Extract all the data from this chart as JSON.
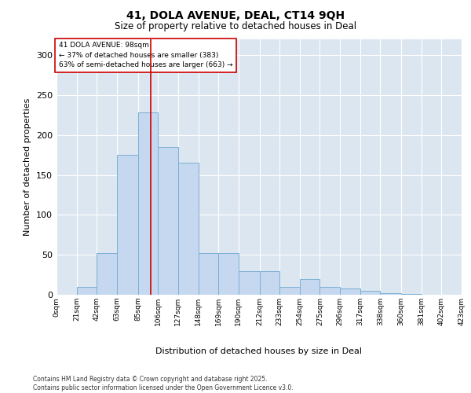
{
  "title_line1": "41, DOLA AVENUE, DEAL, CT14 9QH",
  "title_line2": "Size of property relative to detached houses in Deal",
  "xlabel": "Distribution of detached houses by size in Deal",
  "ylabel": "Number of detached properties",
  "footer_line1": "Contains HM Land Registry data © Crown copyright and database right 2025.",
  "footer_line2": "Contains public sector information licensed under the Open Government Licence v3.0.",
  "annotation_line1": "41 DOLA AVENUE: 98sqm",
  "annotation_line2": "← 37% of detached houses are smaller (383)",
  "annotation_line3": "63% of semi-detached houses are larger (663) →",
  "bar_color": "#c5d8f0",
  "bar_edge_color": "#7bafd4",
  "background_color": "#dce6f0",
  "vline_color": "#cc0000",
  "vline_x": 98,
  "bin_edges": [
    0,
    21,
    42,
    63,
    85,
    106,
    127,
    148,
    169,
    190,
    212,
    233,
    254,
    275,
    296,
    317,
    338,
    360,
    381,
    402,
    423
  ],
  "bar_heights": [
    0,
    10,
    52,
    175,
    228,
    185,
    165,
    52,
    52,
    30,
    30,
    10,
    20,
    10,
    8,
    5,
    2,
    1,
    0,
    0
  ],
  "ylim": [
    0,
    320
  ],
  "yticks": [
    0,
    50,
    100,
    150,
    200,
    250,
    300
  ],
  "tick_labels": [
    "0sqm",
    "21sqm",
    "42sqm",
    "63sqm",
    "85sqm",
    "106sqm",
    "127sqm",
    "148sqm",
    "169sqm",
    "190sqm",
    "212sqm",
    "233sqm",
    "254sqm",
    "275sqm",
    "296sqm",
    "317sqm",
    "338sqm",
    "360sqm",
    "381sqm",
    "402sqm",
    "423sqm"
  ]
}
